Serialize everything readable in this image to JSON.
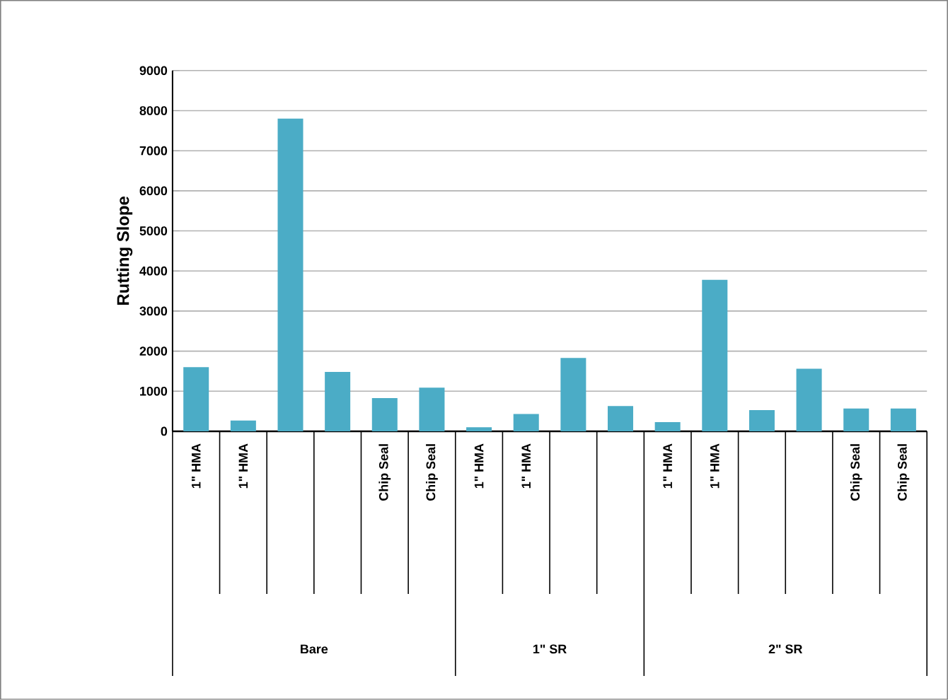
{
  "chart_data": {
    "type": "bar",
    "ylabel": "Rutting Slope",
    "categories": [
      "1\" HMA",
      "1\" HMA",
      null,
      null,
      "Chip Seal",
      "Chip Seal",
      "1\" HMA",
      "1\" HMA",
      null,
      null,
      "1\" HMA",
      "1\" HMA",
      null,
      null,
      "Chip Seal",
      "Chip Seal"
    ],
    "values": [
      1600,
      270,
      7800,
      1480,
      830,
      1090,
      100,
      430,
      1830,
      630,
      230,
      3780,
      530,
      1560,
      570,
      570
    ],
    "color": "#4bacc6",
    "ylim": [
      0,
      9000
    ],
    "yticks": [
      0,
      1000,
      2000,
      3000,
      4000,
      5000,
      6000,
      7000,
      8000,
      9000
    ],
    "grid": "y",
    "annotations": [
      "Bare",
      "1\" SR",
      "2\" SR"
    ]
  }
}
